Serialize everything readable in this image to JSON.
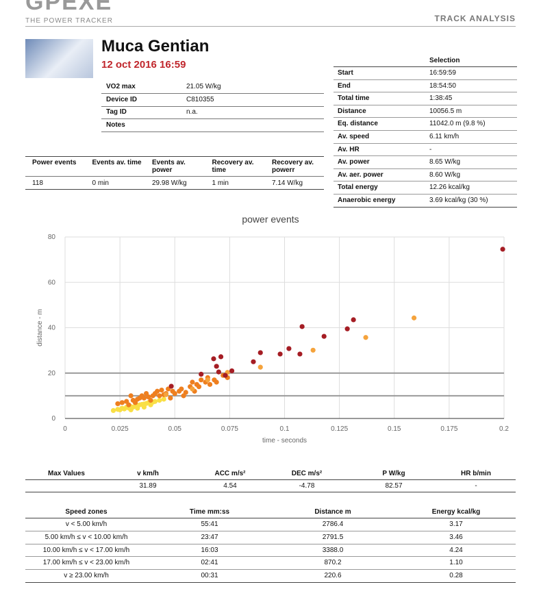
{
  "header": {
    "logo": "GPEXE",
    "tagline": "THE POWER TRACKER",
    "section": "TRACK ANALYSIS"
  },
  "athlete": {
    "name": "Muca Gentian",
    "date": "12 oct 2016 16:59"
  },
  "info": {
    "rows": [
      [
        "VO2 max",
        "21.05 W/kg"
      ],
      [
        "Device ID",
        "C810355"
      ],
      [
        "Tag ID",
        "n.a."
      ],
      [
        "Notes"
      ]
    ]
  },
  "power_events": {
    "header": [
      "Power events",
      "Events av. time",
      "Events av. power",
      "Recovery av. time",
      "Recovery av. powerr"
    ],
    "row": [
      "118",
      "0 min",
      "29.98 W/kg",
      "1 min",
      "7.14 W/kg"
    ]
  },
  "selection": {
    "title": "Selection",
    "rows": [
      [
        "Start",
        "16:59:59"
      ],
      [
        "End",
        "18:54:50"
      ],
      [
        "Total time",
        "1:38:45"
      ],
      [
        "Distance",
        "10056.5 m"
      ],
      [
        "Eq. distance",
        "11042.0 m (9.8 %)"
      ],
      [
        "Av. speed",
        "6.11 km/h"
      ],
      [
        "Av. HR",
        "-"
      ],
      [
        "Av. power",
        "8.65 W/kg"
      ],
      [
        "Av. aer. power",
        "8.60 W/kg"
      ],
      [
        "Total energy",
        "12.26 kcal/kg"
      ],
      [
        "Anaerobic energy",
        "3.69 kcal/kg (30 %)"
      ]
    ]
  },
  "chart_data": {
    "type": "scatter",
    "title": "power events",
    "x_label": "time - seconds",
    "y_label": "distance - m",
    "xlim": [
      0,
      0.2
    ],
    "xticks": [
      0,
      0.025,
      0.05,
      0.075,
      0.1,
      0.125,
      0.15,
      0.175,
      0.2
    ],
    "ylim": [
      0,
      80
    ],
    "yticks": [
      0,
      20,
      40,
      60,
      80
    ],
    "grid": true,
    "reference_lines": [
      10,
      20
    ],
    "series": [
      {
        "color": "#f9df45",
        "x": [
          0.022,
          0.024,
          0.025,
          0.026,
          0.027,
          0.028,
          0.029,
          0.03,
          0.031,
          0.032,
          0.033,
          0.034,
          0.035,
          0.036,
          0.037,
          0.038,
          0.04,
          0.041,
          0.043,
          0.045,
          0.03,
          0.033,
          0.036,
          0.039
        ],
        "values": [
          3.5,
          4,
          3.8,
          4.5,
          4.2,
          5,
          4.6,
          5.2,
          5,
          5.5,
          5.8,
          6,
          6.2,
          6.4,
          6.6,
          7,
          7.2,
          7.5,
          8,
          8.5,
          3.8,
          4.5,
          5,
          6
        ]
      },
      {
        "color": "#ee7f1f",
        "x": [
          0.024,
          0.026,
          0.028,
          0.03,
          0.031,
          0.033,
          0.034,
          0.035,
          0.036,
          0.037,
          0.038,
          0.04,
          0.041,
          0.042,
          0.043,
          0.044,
          0.045,
          0.046,
          0.047,
          0.049,
          0.05,
          0.052,
          0.053,
          0.055,
          0.057,
          0.058,
          0.06,
          0.061,
          0.062,
          0.064,
          0.065,
          0.066,
          0.068,
          0.069,
          0.072,
          0.074,
          0.029,
          0.032,
          0.039,
          0.048,
          0.054,
          0.059
        ],
        "values": [
          6.5,
          7,
          7.5,
          10,
          8,
          8.5,
          9,
          10,
          9,
          11,
          9.5,
          10,
          11,
          12,
          10,
          12.5,
          10.5,
          11,
          13,
          12,
          11,
          12,
          13,
          11.5,
          14,
          16,
          15,
          14,
          17,
          16,
          18,
          15,
          17,
          16,
          19,
          18,
          6,
          7,
          8,
          9,
          10,
          12
        ]
      },
      {
        "color": "#f5a33c",
        "x": [
          0.159,
          0.137,
          0.113,
          0.089,
          0.074,
          0.065,
          0.058,
          0.046
        ],
        "values": [
          44.3,
          35.7,
          30.1,
          22.6,
          20.3,
          17,
          13,
          10.5
        ]
      },
      {
        "color": "#a51d24",
        "x": [
          0.1994,
          0.1314,
          0.1286,
          0.118,
          0.108,
          0.107,
          0.102,
          0.098,
          0.089,
          0.0858,
          0.071,
          0.0677,
          0.069,
          0.07,
          0.076,
          0.062,
          0.0484,
          0.073
        ],
        "values": [
          74.6,
          43.5,
          39.5,
          36.2,
          40.5,
          28.4,
          30.8,
          28.4,
          29,
          25,
          27.2,
          26.3,
          23,
          20.5,
          21,
          19.5,
          14.2,
          19
        ]
      }
    ]
  },
  "max_values": {
    "header": [
      "Max Values",
      "v km/h",
      "ACC m/s²",
      "DEC m/s²",
      "P W/kg",
      "HR b/min"
    ],
    "row": [
      "31.89",
      "4.54",
      "-4.78",
      "82.57",
      "-"
    ]
  },
  "speed_zones": {
    "header": [
      "Speed zones",
      "Time mm:ss",
      "Distance m",
      "Energy kcal/kg"
    ],
    "rows": [
      [
        "v < 5.00 km/h",
        "55:41",
        "2786.4",
        "3.17"
      ],
      [
        "5.00 km/h ≤ v < 10.00 km/h",
        "23:47",
        "2791.5",
        "3.46"
      ],
      [
        "10.00 km/h ≤ v < 17.00 km/h",
        "16:03",
        "3388.0",
        "4.24"
      ],
      [
        "17.00 km/h ≤ v < 23.00 km/h",
        "02:41",
        "870.2",
        "1.10"
      ],
      [
        "v ≥ 23.00 km/h",
        "00:31",
        "220.6",
        "0.28"
      ]
    ]
  }
}
